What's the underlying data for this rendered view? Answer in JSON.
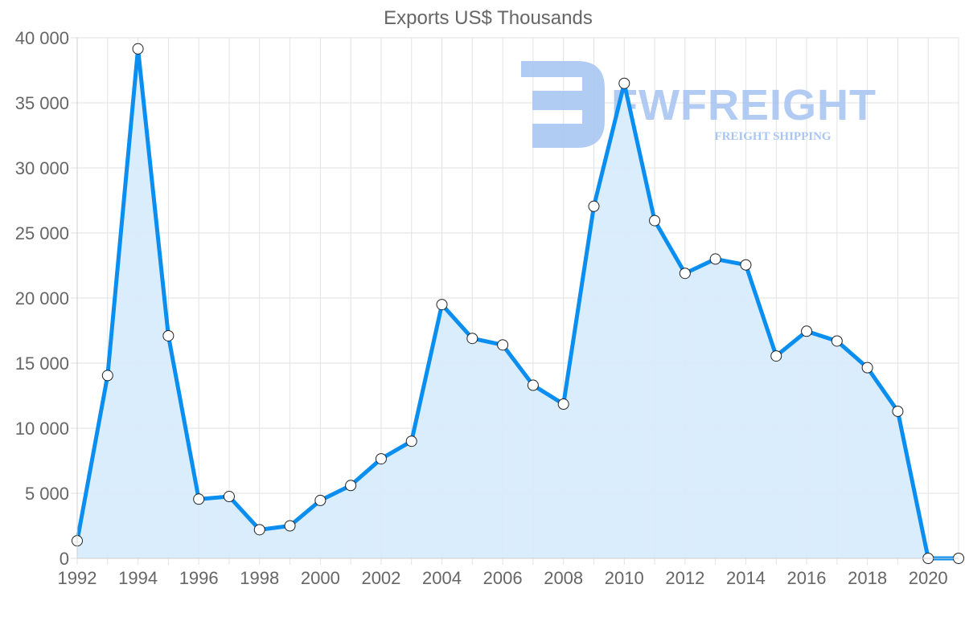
{
  "chart_data": {
    "type": "area",
    "title": "Exports US$ Thousands",
    "xlabel": "",
    "ylabel": "",
    "x": [
      1992,
      1993,
      1994,
      1995,
      1996,
      1997,
      1998,
      1999,
      2000,
      2001,
      2002,
      2003,
      2004,
      2005,
      2006,
      2007,
      2008,
      2009,
      2010,
      2011,
      2012,
      2013,
      2014,
      2015,
      2016,
      2017,
      2018,
      2019,
      2020,
      2021
    ],
    "series": [
      {
        "name": "Exports US$ Thousands",
        "values": [
          1350,
          14050,
          39150,
          17100,
          4550,
          4750,
          2200,
          2500,
          4450,
          5600,
          7650,
          9000,
          19500,
          16900,
          16400,
          13300,
          11850,
          27050,
          36500,
          25950,
          21900,
          23000,
          22550,
          15550,
          17450,
          16700,
          14650,
          11300,
          0,
          0
        ]
      }
    ],
    "x_tick_labels": [
      "1992",
      "1994",
      "1996",
      "1998",
      "2000",
      "2002",
      "2004",
      "2006",
      "2008",
      "2010",
      "2012",
      "2014",
      "2016",
      "2018",
      "2020"
    ],
    "y_tick_labels": [
      "0",
      "5 000",
      "10 000",
      "15 000",
      "20 000",
      "25 000",
      "30 000",
      "35 000",
      "40 000"
    ],
    "y_ticks": [
      0,
      5000,
      10000,
      15000,
      20000,
      25000,
      30000,
      35000,
      40000
    ],
    "ylim": [
      0,
      40000
    ],
    "xlim": [
      1992,
      2021
    ],
    "grid": true,
    "legend": "none",
    "colors": {
      "line": "#0a8ef0",
      "fill": "#d8ecfc",
      "grid": "#e2e2e2",
      "axis_text": "#666666",
      "point_fill": "#ffffff",
      "point_stroke": "#222222"
    }
  },
  "watermark": {
    "brand": "FWFREIGHT",
    "tagline": "FREIGHT SHIPPING",
    "color": "#a9c6f2"
  }
}
